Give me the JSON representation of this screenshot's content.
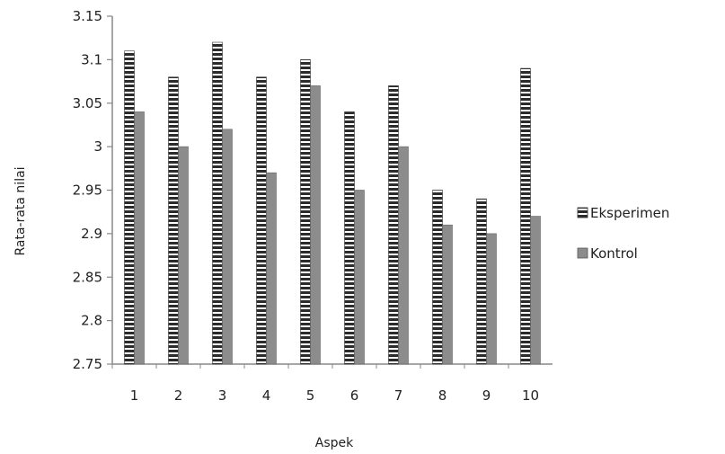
{
  "chart_data": {
    "type": "bar",
    "categories": [
      "1",
      "2",
      "3",
      "4",
      "5",
      "6",
      "7",
      "8",
      "9",
      "10"
    ],
    "series": [
      {
        "name": "Eksperimen",
        "values": [
          3.11,
          3.08,
          3.12,
          3.08,
          3.1,
          3.04,
          3.07,
          2.95,
          2.94,
          3.09
        ]
      },
      {
        "name": "Kontrol",
        "values": [
          3.04,
          3.0,
          3.02,
          2.97,
          3.07,
          2.95,
          3.0,
          2.91,
          2.9,
          2.92
        ]
      }
    ],
    "yticks": [
      "2.75",
      "2.8",
      "2.85",
      "2.9",
      "2.95",
      "3",
      "3.05",
      "3.1",
      "3.15"
    ],
    "xlabel": "Aspek",
    "ylabel": "Rata-rata nilai",
    "ylim": [
      2.75,
      3.15
    ],
    "grid": false,
    "legend_position": "right",
    "colors": {
      "eksperimen_fill": "#2b2b2b",
      "eksperimen_stripe": "#ffffff",
      "kontrol_fill": "#8c8c8c",
      "axis": "#888888"
    }
  }
}
